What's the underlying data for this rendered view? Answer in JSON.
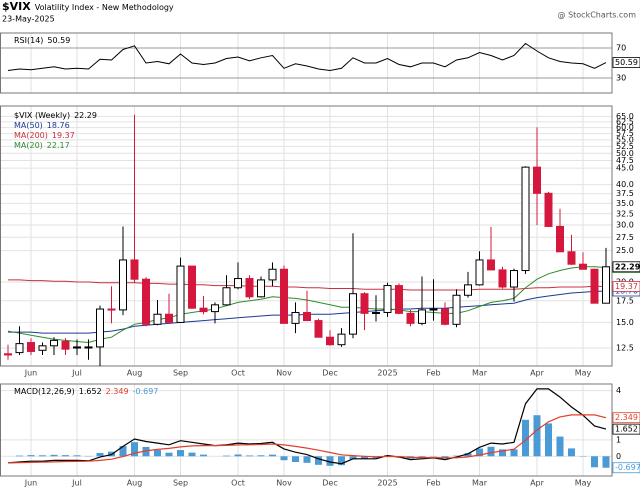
{
  "header": {
    "symbol": "$VIX",
    "name": "Volatility Index - New Methodology",
    "date": "23-May-2025",
    "credit": "@ StockCharts.com"
  },
  "chart_data": [
    {
      "type": "line",
      "title": "RSI(14)",
      "grid": true,
      "ylim": [
        10,
        90
      ],
      "yticks": [
        30,
        70
      ],
      "series": [
        {
          "name": "RSI(14)",
          "color": "#000000",
          "values": [
            40,
            42,
            41,
            43,
            45,
            42,
            43,
            42,
            55,
            54,
            68,
            73,
            50,
            52,
            49,
            62,
            50,
            48,
            50,
            56,
            58,
            53,
            57,
            60,
            43,
            49,
            46,
            42,
            40,
            43,
            57,
            50,
            50,
            56,
            48,
            45,
            50,
            50,
            45,
            54,
            57,
            64,
            60,
            54,
            60,
            76,
            66,
            57,
            52,
            50,
            49,
            43,
            50.59
          ]
        }
      ]
    },
    {
      "type": "candlestick",
      "title": "$VIX (Weekly)",
      "grid": true,
      "log_scale": true,
      "ylim": [
        11,
        70
      ],
      "up_color": "#000000",
      "down_color": "#d5173e",
      "yticks": [
        12.5,
        {
          "value": 15,
          "label": "15.0"
        },
        17.5,
        {
          "value": 20,
          "label": "20.0"
        },
        {
          "value": 25,
          "label": "25.0"
        },
        27.5,
        {
          "value": 30,
          "label": "30.0"
        },
        32.5,
        {
          "value": 35,
          "label": "35.0"
        },
        37.5,
        {
          "value": 40,
          "label": "40.0"
        },
        {
          "value": 45,
          "label": "45.0"
        },
        47.5,
        {
          "value": 50,
          "label": "50.0"
        },
        52.5,
        {
          "value": 55,
          "label": "55.0"
        },
        57.5,
        {
          "value": 60,
          "label": "60.0"
        },
        62.5,
        {
          "value": 65,
          "label": "65.0"
        }
      ],
      "categories": [
        null,
        null,
        "Jun",
        null,
        null,
        null,
        "Jul",
        null,
        null,
        null,
        null,
        "Aug",
        null,
        null,
        null,
        "Sep",
        null,
        null,
        null,
        null,
        "Oct",
        null,
        null,
        null,
        "Nov",
        null,
        null,
        null,
        "Dec",
        null,
        null,
        null,
        null,
        "2025",
        null,
        null,
        null,
        "Feb",
        null,
        null,
        null,
        "Mar",
        null,
        null,
        null,
        null,
        "Apr",
        null,
        null,
        null,
        "May",
        null,
        null
      ],
      "open": [
        12.0,
        12.1,
        13.0,
        12.3,
        12.7,
        13.1,
        12.6,
        12.6,
        12.6,
        16.5,
        16.4,
        23.4,
        20.4,
        14.8,
        15.9,
        15.0,
        22.4,
        16.6,
        16.2,
        17.0,
        19.2,
        20.5,
        18.0,
        20.3,
        21.9,
        14.9,
        16.1,
        15.2,
        13.5,
        12.8,
        13.8,
        18.4,
        16.0,
        16.1,
        19.5,
        16.0,
        14.9,
        16.4,
        16.5,
        14.8,
        18.2,
        19.6,
        23.4,
        21.8,
        19.3,
        21.7,
        45.3,
        37.6,
        29.7,
        24.8,
        22.7,
        21.9,
        17.2
      ],
      "high": [
        12.8,
        14.6,
        13.4,
        13.0,
        13.5,
        13.4,
        13.3,
        13.3,
        16.9,
        19.4,
        29.7,
        65.7,
        20.7,
        17.6,
        18.4,
        23.8,
        22.4,
        18.1,
        17.3,
        21.0,
        23.0,
        21.0,
        20.8,
        23.0,
        22.5,
        17.3,
        18.8,
        15.4,
        14.2,
        14.4,
        28.3,
        18.6,
        18.2,
        19.9,
        19.8,
        16.4,
        20.8,
        20.4,
        17.3,
        19.0,
        21.5,
        24.9,
        29.6,
        22.3,
        22.0,
        45.6,
        60.1,
        38.0,
        33.7,
        28.0,
        24.7,
        22.0,
        25.5
      ],
      "low": [
        11.5,
        11.9,
        11.9,
        11.9,
        11.9,
        11.9,
        11.9,
        11.5,
        11.0,
        14.9,
        15.8,
        19.9,
        14.6,
        14.7,
        15.0,
        15.0,
        16.5,
        15.9,
        14.9,
        16.9,
        19.0,
        17.7,
        17.9,
        19.4,
        14.9,
        13.9,
        15.2,
        13.5,
        12.7,
        12.6,
        13.4,
        14.2,
        15.1,
        15.6,
        15.9,
        14.6,
        14.7,
        15.2,
        14.7,
        14.5,
        17.9,
        19.5,
        21.8,
        19.1,
        17.4,
        21.2,
        30.0,
        29.6,
        24.8,
        22.6,
        21.9,
        17.2,
        17.2
      ],
      "close": [
        11.9,
        12.9,
        12.2,
        12.7,
        13.2,
        12.4,
        12.5,
        12.5,
        16.5,
        16.4,
        23.4,
        20.4,
        14.8,
        15.9,
        15.0,
        22.4,
        16.6,
        16.2,
        17.0,
        19.2,
        20.5,
        18.0,
        20.3,
        21.9,
        14.9,
        16.1,
        15.2,
        13.5,
        12.8,
        13.8,
        18.4,
        16.0,
        16.1,
        19.5,
        16.0,
        14.9,
        16.4,
        16.5,
        14.8,
        18.2,
        19.6,
        23.4,
        21.8,
        19.3,
        21.7,
        45.3,
        37.6,
        29.7,
        24.8,
        22.7,
        21.9,
        17.2,
        22.29
      ],
      "series": [
        {
          "name": "MA(50)",
          "color": "#1c3a94",
          "values": [
            14.0,
            14.0,
            14.0,
            13.9,
            13.9,
            13.9,
            13.9,
            13.9,
            14.0,
            14.1,
            14.3,
            14.6,
            14.7,
            14.8,
            14.9,
            15.0,
            15.1,
            15.2,
            15.3,
            15.4,
            15.5,
            15.6,
            15.7,
            15.8,
            15.8,
            15.8,
            15.9,
            15.9,
            15.9,
            16.0,
            16.1,
            16.2,
            16.3,
            16.4,
            16.5,
            16.5,
            16.6,
            16.6,
            16.6,
            16.7,
            16.8,
            16.9,
            17.0,
            17.1,
            17.2,
            17.6,
            17.9,
            18.1,
            18.3,
            18.5,
            18.6,
            18.7,
            18.76
          ]
        },
        {
          "name": "MA(200)",
          "color": "#c8323f",
          "values": [
            20.3,
            20.3,
            20.2,
            20.2,
            20.1,
            20.1,
            20.0,
            20.0,
            19.9,
            19.9,
            19.9,
            19.9,
            19.8,
            19.8,
            19.7,
            19.7,
            19.6,
            19.6,
            19.5,
            19.5,
            19.5,
            19.4,
            19.4,
            19.4,
            19.3,
            19.3,
            19.2,
            19.2,
            19.1,
            19.1,
            19.1,
            19.0,
            19.0,
            19.0,
            19.0,
            18.9,
            18.9,
            18.9,
            18.9,
            18.9,
            18.9,
            19.0,
            19.0,
            19.0,
            19.0,
            19.1,
            19.2,
            19.2,
            19.3,
            19.3,
            19.3,
            19.4,
            19.37
          ]
        },
        {
          "name": "MA(20)",
          "color": "#2e8b2e",
          "values": [
            14.1,
            13.9,
            13.7,
            13.5,
            13.3,
            13.2,
            13.1,
            13.0,
            13.3,
            13.5,
            14.2,
            14.8,
            15.0,
            15.3,
            15.5,
            15.9,
            16.1,
            16.3,
            16.5,
            16.9,
            17.3,
            17.5,
            17.7,
            18.0,
            17.9,
            17.8,
            17.6,
            17.3,
            17.0,
            16.7,
            16.7,
            16.6,
            16.5,
            16.5,
            16.4,
            16.2,
            16.2,
            16.1,
            16.0,
            16.0,
            16.3,
            16.8,
            17.3,
            17.5,
            17.8,
            19.2,
            20.4,
            21.2,
            21.7,
            22.1,
            22.3,
            22.3,
            22.17
          ]
        }
      ]
    },
    {
      "type": "macd",
      "title": "MACD(12,26,9)",
      "grid": true,
      "ylim": [
        -1.2,
        4.4
      ],
      "yticks": [
        0,
        1,
        4
      ],
      "series": [
        {
          "kind": "bar",
          "color": "#4a9ad6",
          "values": [
            0.0,
            0.04,
            0.07,
            0.06,
            0.09,
            0.07,
            0.06,
            0.02,
            0.2,
            0.28,
            0.62,
            0.86,
            0.57,
            0.38,
            0.22,
            0.38,
            0.22,
            0.1,
            0.0,
            0.04,
            0.11,
            0.05,
            0.06,
            0.1,
            -0.24,
            -0.35,
            -0.4,
            -0.52,
            -0.58,
            -0.54,
            -0.19,
            -0.15,
            -0.12,
            0.06,
            -0.03,
            -0.14,
            -0.07,
            -0.02,
            -0.1,
            0.04,
            0.19,
            0.47,
            0.58,
            0.42,
            0.42,
            2.22,
            2.5,
            2.0,
            1.2,
            0.48,
            -0.02,
            -0.67,
            -0.697
          ]
        },
        {
          "kind": "line",
          "color": "#000000",
          "values": [
            -0.4,
            -0.35,
            -0.3,
            -0.3,
            -0.25,
            -0.25,
            -0.25,
            -0.28,
            -0.05,
            0.1,
            0.6,
            1.05,
            0.9,
            0.8,
            0.7,
            0.95,
            0.85,
            0.75,
            0.65,
            0.7,
            0.8,
            0.75,
            0.78,
            0.85,
            0.45,
            0.25,
            0.1,
            -0.15,
            -0.35,
            -0.45,
            -0.15,
            -0.15,
            -0.15,
            0.05,
            -0.05,
            -0.2,
            -0.15,
            -0.1,
            -0.2,
            -0.05,
            0.15,
            0.55,
            0.8,
            0.75,
            0.85,
            3.2,
            4.1,
            4.1,
            3.6,
            3.0,
            2.5,
            1.85,
            1.652
          ]
        },
        {
          "kind": "line",
          "color": "#e0402a",
          "values": [
            -0.4,
            -0.39,
            -0.37,
            -0.36,
            -0.34,
            -0.32,
            -0.31,
            -0.3,
            -0.25,
            -0.18,
            -0.02,
            0.19,
            0.33,
            0.42,
            0.48,
            0.57,
            0.63,
            0.65,
            0.65,
            0.66,
            0.69,
            0.7,
            0.72,
            0.75,
            0.69,
            0.6,
            0.5,
            0.37,
            0.23,
            0.09,
            0.04,
            0.0,
            -0.03,
            -0.01,
            -0.02,
            -0.06,
            -0.08,
            -0.08,
            -0.1,
            -0.09,
            -0.04,
            0.08,
            0.22,
            0.33,
            0.43,
            0.98,
            1.6,
            2.1,
            2.4,
            2.52,
            2.52,
            2.52,
            2.349
          ]
        }
      ]
    }
  ]
}
